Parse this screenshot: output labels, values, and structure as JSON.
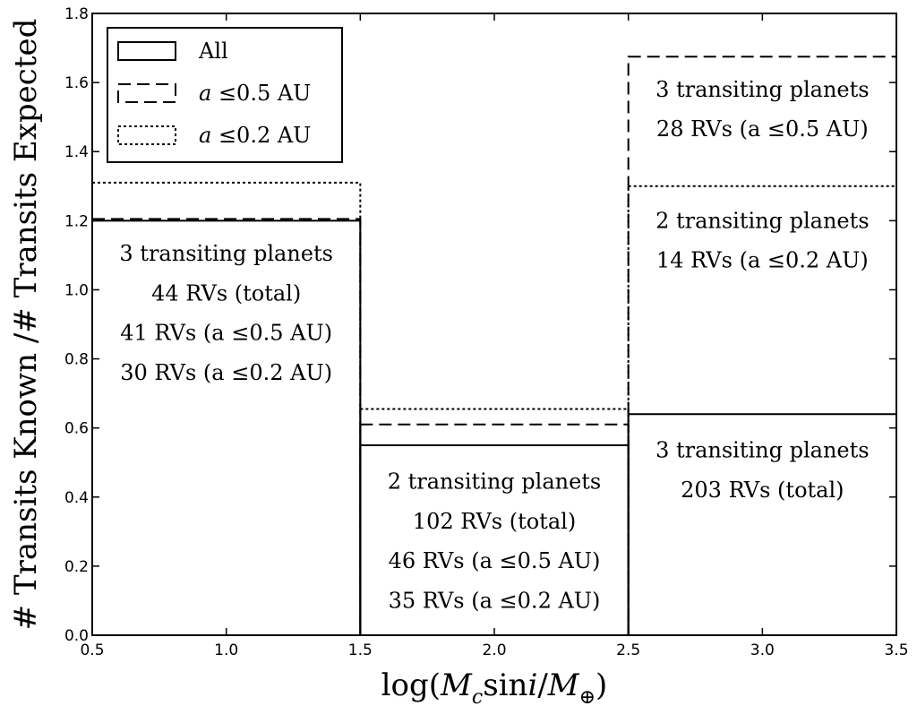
{
  "chart_data": {
    "type": "bar",
    "bin_edges": [
      0.5,
      1.5,
      2.5,
      3.5
    ],
    "xlim": [
      0.5,
      3.5
    ],
    "ylim": [
      0.0,
      1.8
    ],
    "xticks": [
      0.5,
      1.0,
      1.5,
      2.0,
      2.5,
      3.0,
      3.5
    ],
    "xtick_labels": [
      "0.5",
      "1.0",
      "1.5",
      "2.0",
      "2.5",
      "3.0",
      "3.5"
    ],
    "yticks": [
      0.0,
      0.2,
      0.4,
      0.6,
      0.8,
      1.0,
      1.2,
      1.4,
      1.6,
      1.8
    ],
    "ytick_labels": [
      "0.0",
      "0.2",
      "0.4",
      "0.6",
      "0.8",
      "1.0",
      "1.2",
      "1.4",
      "1.6",
      "1.8"
    ],
    "xlabel_parts": [
      "log(",
      "M",
      "c",
      "sin",
      "i",
      "/",
      "M",
      "⊕",
      ")"
    ],
    "ylabel": "# Transits Known /# Transits Expected",
    "grid": false,
    "legend_position": "top-left",
    "series": [
      {
        "name": "All",
        "name_prefix": "",
        "style": "solid",
        "values": [
          1.2,
          0.55,
          0.64
        ]
      },
      {
        "name": "a ≤0.5 AU",
        "name_prefix": "a",
        "name_suffix": " ≤0.5 AU",
        "style": "dashed",
        "values": [
          1.205,
          0.61,
          1.675
        ]
      },
      {
        "name": "a ≤0.2 AU",
        "name_prefix": "a",
        "name_suffix": " ≤0.2 AU",
        "style": "dotted",
        "values": [
          1.31,
          0.655,
          1.3
        ]
      }
    ],
    "annotations": [
      {
        "x": 1.0,
        "y": 1.105,
        "text": "3 transiting planets"
      },
      {
        "x": 1.0,
        "y": 0.99,
        "text": "44 RVs (total)"
      },
      {
        "x": 1.0,
        "y": 0.875,
        "text": "41 RVs (a ≤0.5 AU)"
      },
      {
        "x": 1.0,
        "y": 0.76,
        "text": "30 RVs (a ≤0.2 AU)"
      },
      {
        "x": 2.0,
        "y": 0.445,
        "text": "2 transiting planets"
      },
      {
        "x": 2.0,
        "y": 0.33,
        "text": "102 RVs (total)"
      },
      {
        "x": 2.0,
        "y": 0.215,
        "text": "46 RVs (a ≤0.5 AU)"
      },
      {
        "x": 2.0,
        "y": 0.1,
        "text": "35 RVs (a ≤0.2 AU)"
      },
      {
        "x": 3.0,
        "y": 1.58,
        "text": "3 transiting planets"
      },
      {
        "x": 3.0,
        "y": 1.465,
        "text": "28 RVs (a ≤0.5 AU)"
      },
      {
        "x": 3.0,
        "y": 1.2,
        "text": "2 transiting planets"
      },
      {
        "x": 3.0,
        "y": 1.085,
        "text": "14 RVs (a ≤0.2 AU)"
      },
      {
        "x": 3.0,
        "y": 0.535,
        "text": "3 transiting planets"
      },
      {
        "x": 3.0,
        "y": 0.42,
        "text": "203 RVs (total)"
      }
    ]
  }
}
